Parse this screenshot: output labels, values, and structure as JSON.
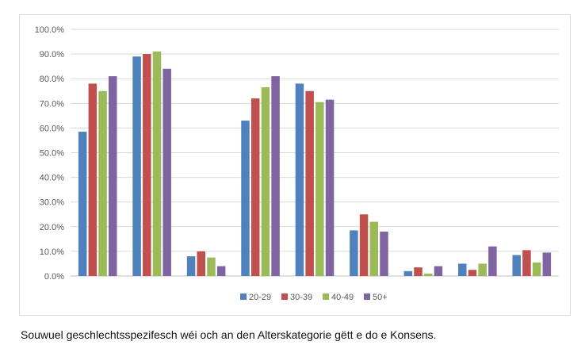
{
  "chart_data": {
    "type": "bar",
    "title": "",
    "xlabel": "",
    "ylabel": "",
    "ylim": [
      0,
      100
    ],
    "yticks": [
      "0.0%",
      "10.0%",
      "20.0%",
      "30.0%",
      "40.0%",
      "50.0%",
      "60.0%",
      "70.0%",
      "80.0%",
      "90.0%",
      "100.0%"
    ],
    "grid": true,
    "legend_position": "bottom",
    "categories": [
      "",
      "",
      "",
      "",
      "",
      "",
      "",
      "",
      ""
    ],
    "series": [
      {
        "name": "20-29",
        "color": "#4f81bd",
        "values": [
          58.5,
          89.0,
          8.0,
          63.0,
          78.0,
          18.5,
          2.0,
          5.0,
          8.5
        ]
      },
      {
        "name": "30-39",
        "color": "#c0504d",
        "values": [
          78.0,
          90.0,
          10.0,
          72.0,
          75.0,
          25.0,
          3.5,
          2.5,
          10.5
        ]
      },
      {
        "name": "40-49",
        "color": "#9bbb59",
        "values": [
          75.0,
          91.0,
          7.5,
          76.5,
          70.5,
          22.0,
          1.0,
          5.0,
          5.5
        ]
      },
      {
        "name": "50+",
        "color": "#8064a2",
        "values": [
          81.0,
          84.0,
          4.0,
          81.0,
          71.5,
          18.0,
          4.0,
          12.0,
          9.5
        ]
      }
    ]
  },
  "caption": "Souwuel geschlechtsspezifesch wéi och an den Alterskategorie gëtt e do e Konsens."
}
